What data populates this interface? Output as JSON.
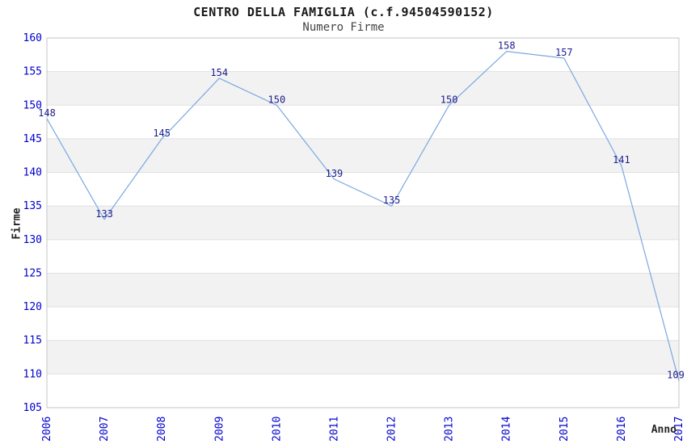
{
  "chart_data": {
    "type": "line",
    "title": "CENTRO DELLA FAMIGLIA (c.f.94504590152)",
    "subtitle": "Numero Firme",
    "xlabel": "Anno",
    "ylabel": "Firme",
    "x": [
      "2006",
      "2007",
      "2008",
      "2009",
      "2010",
      "2011",
      "2012",
      "2013",
      "2014",
      "2015",
      "2016",
      "2017"
    ],
    "values": [
      148,
      133,
      145,
      154,
      150,
      139,
      135,
      150,
      158,
      157,
      141,
      109
    ],
    "ylim": [
      105,
      160
    ],
    "ytick_step": 5,
    "xtick_rotation": -90,
    "grid": "horizontal-bands-alternating",
    "legend": "none",
    "data_labels": true,
    "colors": {
      "line": "#7aa8e0",
      "tick_label": "#0000cd",
      "data_label": "#1c1c8c",
      "band": "#f2f2f2",
      "gridline": "#e0e0e0",
      "plot_border": "#c6c6c6",
      "title": "#1a1a1a",
      "subtitle": "#444444",
      "axis_label": "#222222",
      "background": "#ffffff"
    }
  }
}
